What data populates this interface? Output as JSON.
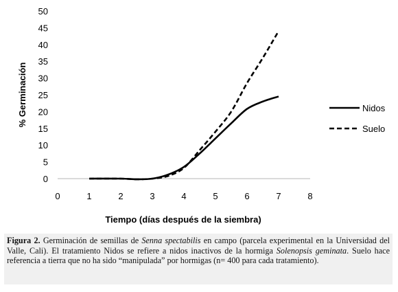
{
  "chart_data": {
    "type": "line",
    "title": "",
    "xlabel": "Tiempo (días después de la siembra)",
    "ylabel": "% Germinación",
    "xlim": [
      0,
      8
    ],
    "ylim": [
      0,
      50
    ],
    "x_ticks": [
      "0",
      "1",
      "2",
      "3",
      "4",
      "5",
      "6",
      "7",
      "8"
    ],
    "y_ticks": [
      "0",
      "5",
      "10",
      "15",
      "20",
      "25",
      "30",
      "35",
      "40",
      "45",
      "50"
    ],
    "grid": false,
    "legend_position": "right",
    "series": [
      {
        "name": "Nidos",
        "style": "solid",
        "color": "#000000",
        "x": [
          1,
          2,
          2.5,
          3,
          3.5,
          4,
          4.5,
          5,
          5.5,
          6,
          6.5,
          7
        ],
        "y": [
          0,
          0,
          -0.2,
          0,
          1.2,
          3.5,
          7.5,
          12,
          16.5,
          20.8,
          23,
          24.5
        ]
      },
      {
        "name": "Suelo",
        "style": "dashed",
        "color": "#000000",
        "x": [
          1,
          2,
          2.5,
          3,
          3.5,
          4,
          4.5,
          5,
          5.5,
          6,
          6.5,
          7
        ],
        "y": [
          0,
          0,
          -0.2,
          0,
          0.8,
          3.2,
          8.5,
          14,
          20,
          28.5,
          36,
          44
        ]
      }
    ]
  },
  "caption": {
    "label": "Figura 2.",
    "part1": "Germinación de semillas de",
    "species1": "Senna spectabilis",
    "part2": "en campo (parcela experimental en la Universidad del Valle, Cali). El tratamiento Nidos se refiere a nidos inactivos de la hormiga",
    "species2": "Solenopsis geminata",
    "part3": ". Suelo hace referencia a tierra que no ha sido “manipulada” por hormigas (n= 400 para cada tratamiento)."
  }
}
